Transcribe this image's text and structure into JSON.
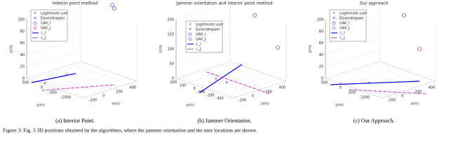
{
  "figure": {
    "panels": [
      {
        "title": "Interior point method",
        "z_label": "z(m)",
        "y_label": "y(m)",
        "x_label": "x(m)",
        "z_ticks": [
          100,
          80,
          60,
          40,
          20,
          0
        ],
        "y_ticks": [
          500,
          0,
          -500,
          -1000
        ],
        "x_ticks": [
          -200,
          0,
          200,
          400
        ],
        "legend": [
          "Legitimate user",
          "Eavesdropper",
          "UAV_I",
          "UAV_J",
          "ℒ_I",
          "ℒ_J"
        ],
        "subcaption": "(a) Interior Point."
      },
      {
        "title": "Jammer orientation and interior point method",
        "z_label": "z(m)",
        "y_label": "y(m)",
        "x_label": "x(m)",
        "z_ticks": [
          200,
          150,
          100,
          50,
          0
        ],
        "y_ticks": [
          200,
          100,
          0,
          -100,
          -200,
          -300
        ],
        "x_ticks": [
          -200,
          0,
          200,
          400
        ],
        "legend": [
          "Legitimate user",
          "Eavesdropper",
          "UAV_I",
          "UAV_J",
          "ℒ_I",
          "ℒ_J"
        ],
        "subcaption": "(b) Jammer Orientation."
      },
      {
        "title": "Our approach",
        "z_label": "z(m)",
        "y_label": "y(m)",
        "x_label": "x(m)",
        "z_ticks": [
          100,
          80,
          60,
          40,
          20,
          0
        ],
        "y_ticks": [
          500,
          0,
          -500,
          -1000
        ],
        "x_ticks": [
          -200,
          0,
          200,
          400
        ],
        "legend": [
          "Legitimate user",
          "Eavesdropper",
          "UAV_I",
          "UAV_J",
          "ℒ_I",
          "ℒ_J"
        ],
        "subcaption": "(c) Our Approach."
      }
    ],
    "caption": "Figure 3: Fig. 3 3D positions obtained by the algorithms, where the jammer orientation and the user locations are shown."
  }
}
